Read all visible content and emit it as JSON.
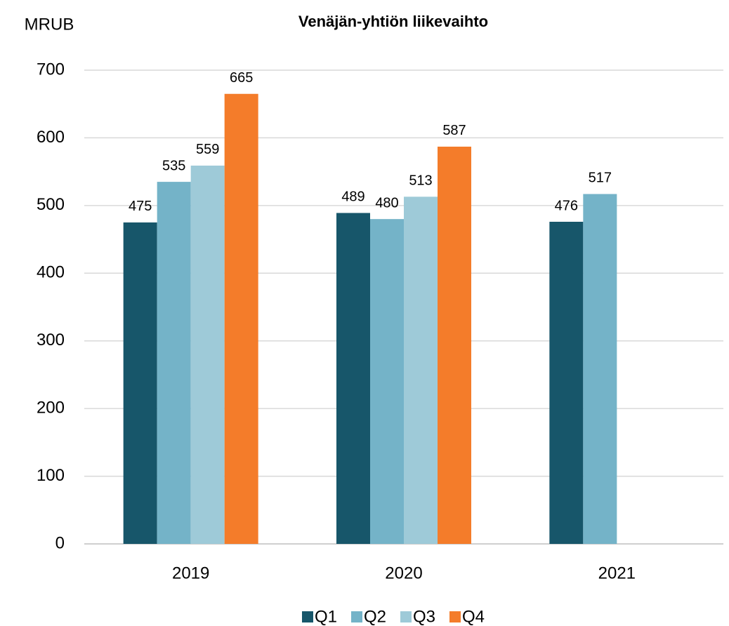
{
  "chart_data": {
    "type": "bar",
    "title": "Venäjän-yhtiön liikevaihto",
    "y_label": "MRUB",
    "categories": [
      "2019",
      "2020",
      "2021"
    ],
    "series": [
      {
        "name": "Q1",
        "color": "#17566a",
        "values": [
          475,
          489,
          476
        ]
      },
      {
        "name": "Q2",
        "color": "#74b3c8",
        "values": [
          535,
          480,
          517
        ]
      },
      {
        "name": "Q3",
        "color": "#9ecad8",
        "values": [
          559,
          513,
          null
        ]
      },
      {
        "name": "Q4",
        "color": "#f47c2a",
        "values": [
          665,
          587,
          null
        ]
      }
    ],
    "ylim": [
      0,
      700
    ],
    "yticks": [
      0,
      100,
      200,
      300,
      400,
      500,
      600,
      700
    ],
    "grid": true,
    "legend": "bottom"
  }
}
